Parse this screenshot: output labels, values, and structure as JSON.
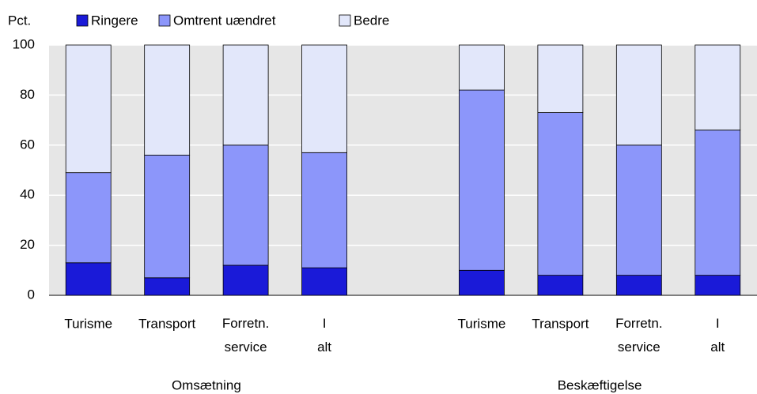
{
  "chart_data": {
    "type": "stacked_bar",
    "y_unit_label": "Pct.",
    "categories": [
      "Turisme",
      "Transport",
      "Forretn. service",
      "I alt",
      null,
      "Turisme",
      "Transport",
      "Forretn. service",
      "I alt"
    ],
    "group_labels": [
      "Omsætning",
      "Beskæftigelse"
    ],
    "series": [
      {
        "name": "Ringere",
        "color": "#1a1ad8",
        "values": [
          13,
          7,
          12,
          11,
          null,
          10,
          8,
          8,
          8
        ]
      },
      {
        "name": "Omtrent uændret",
        "color": "#8c96fa",
        "values": [
          36,
          49,
          48,
          46,
          null,
          72,
          65,
          52,
          58
        ]
      },
      {
        "name": "Bedre",
        "color": "#e2e7fa",
        "values": [
          51,
          44,
          40,
          43,
          null,
          18,
          27,
          40,
          34
        ]
      }
    ],
    "ylim": [
      0,
      100
    ],
    "yticks": [
      0,
      20,
      40,
      60,
      80,
      100
    ],
    "grid": true
  }
}
